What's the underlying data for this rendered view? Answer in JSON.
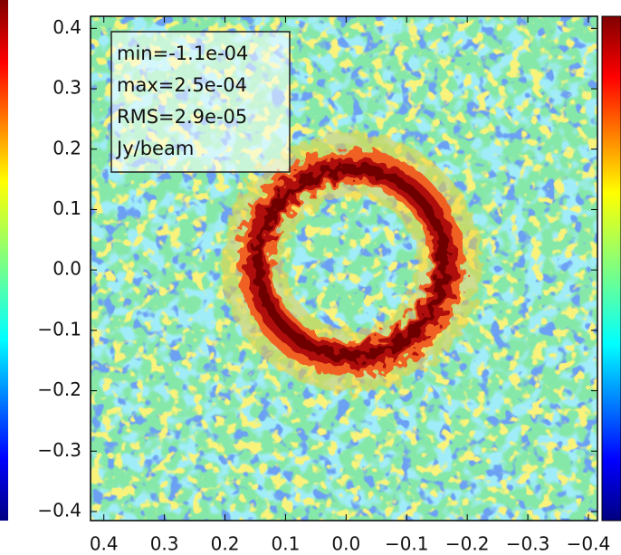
{
  "chart_data": {
    "type": "heatmap",
    "annotations": [
      "min=-1.1e-04",
      "max=2.5e-04",
      "RMS=2.9e-05",
      "Jy/beam"
    ],
    "xlim": [
      0.422,
      -0.415
    ],
    "ylim": [
      -0.415,
      0.42
    ],
    "xticks": [
      0.4,
      0.3,
      0.2,
      0.1,
      {
        "value": 0,
        "label": "0.0"
      },
      {
        "value": -0.1,
        "label": "−0.1"
      },
      {
        "value": -0.2,
        "label": "−0.2"
      },
      {
        "value": -0.3,
        "label": "−0.3"
      },
      {
        "value": -0.4,
        "label": "−0.4"
      }
    ],
    "yticks": [
      {
        "value": -0.4,
        "label": "−0.4"
      },
      {
        "value": -0.3,
        "label": "−0.3"
      },
      {
        "value": -0.2,
        "label": "−0.2"
      },
      {
        "value": -0.1,
        "label": "−0.1"
      },
      {
        "value": 0,
        "label": "0.0"
      },
      0.1,
      0.2,
      0.3,
      0.4
    ]
  }
}
